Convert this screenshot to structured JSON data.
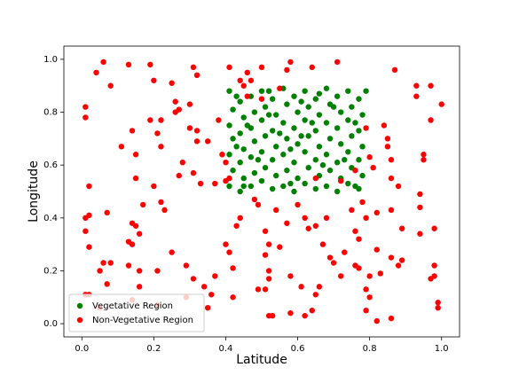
{
  "chart_data": {
    "type": "scatter",
    "x_label": "Latitude",
    "y_label": "Longitude",
    "xlim": [
      -0.05,
      1.05
    ],
    "ylim": [
      -0.05,
      1.05
    ],
    "xticks": [
      {
        "value": 0,
        "label": "0.0"
      },
      0.2,
      0.4,
      0.6,
      0.8,
      {
        "value": 1,
        "label": "1.0"
      }
    ],
    "yticks": [
      {
        "value": 0,
        "label": "0.0"
      },
      0.2,
      0.4,
      0.6,
      0.8,
      {
        "value": 1,
        "label": "1.0"
      }
    ],
    "legend": "lower left",
    "series": [
      {
        "name": "Vegetative Region",
        "color": "#008000",
        "x": [
          0.41,
          0.42,
          0.41,
          0.42,
          0.41,
          0.42,
          0.41,
          0.44,
          0.45,
          0.44,
          0.45,
          0.44,
          0.45,
          0.44,
          0.47,
          0.48,
          0.47,
          0.48,
          0.47,
          0.48,
          0.47,
          0.5,
          0.51,
          0.5,
          0.51,
          0.5,
          0.51,
          0.5,
          0.53,
          0.54,
          0.53,
          0.54,
          0.53,
          0.54,
          0.53,
          0.56,
          0.57,
          0.56,
          0.57,
          0.56,
          0.57,
          0.56,
          0.59,
          0.6,
          0.59,
          0.6,
          0.59,
          0.6,
          0.59,
          0.62,
          0.63,
          0.62,
          0.63,
          0.62,
          0.63,
          0.62,
          0.65,
          0.66,
          0.65,
          0.66,
          0.65,
          0.66,
          0.65,
          0.68,
          0.69,
          0.68,
          0.69,
          0.68,
          0.69,
          0.68,
          0.71,
          0.72,
          0.71,
          0.72,
          0.71,
          0.72,
          0.71,
          0.74,
          0.75,
          0.74,
          0.75,
          0.74,
          0.75,
          0.74,
          0.77,
          0.78,
          0.77,
          0.78,
          0.77,
          0.78,
          0.77,
          0.43,
          0.46,
          0.49,
          0.52,
          0.55,
          0.58,
          0.61,
          0.64,
          0.67,
          0.7,
          0.73,
          0.76,
          0.79,
          0.45,
          0.58,
          0.66,
          0.76,
          0.43,
          0.52,
          0.61
        ],
        "values": [
          0.88,
          0.81,
          0.75,
          0.7,
          0.64,
          0.58,
          0.52,
          0.84,
          0.78,
          0.72,
          0.66,
          0.61,
          0.55,
          0.5,
          0.86,
          0.8,
          0.74,
          0.69,
          0.63,
          0.57,
          0.52,
          0.88,
          0.82,
          0.77,
          0.71,
          0.65,
          0.59,
          0.54,
          0.85,
          0.79,
          0.73,
          0.67,
          0.62,
          0.56,
          0.51,
          0.89,
          0.83,
          0.76,
          0.7,
          0.64,
          0.58,
          0.52,
          0.86,
          0.8,
          0.74,
          0.68,
          0.61,
          0.55,
          0.5,
          0.88,
          0.82,
          0.77,
          0.71,
          0.65,
          0.59,
          0.53,
          0.85,
          0.79,
          0.73,
          0.67,
          0.62,
          0.56,
          0.51,
          0.89,
          0.83,
          0.76,
          0.7,
          0.64,
          0.58,
          0.52,
          0.86,
          0.8,
          0.74,
          0.68,
          0.61,
          0.55,
          0.5,
          0.88,
          0.82,
          0.77,
          0.71,
          0.65,
          0.59,
          0.53,
          0.85,
          0.79,
          0.73,
          0.67,
          0.62,
          0.56,
          0.51,
          0.86,
          0.75,
          0.62,
          0.88,
          0.72,
          0.66,
          0.84,
          0.76,
          0.6,
          0.82,
          0.62,
          0.76,
          0.88,
          0.52,
          0.53,
          0.87,
          0.52,
          0.67,
          0.79,
          0.71
        ]
      },
      {
        "name": "Non-Vegetative Region",
        "color": "#ff0000",
        "x": [
          0.01,
          0.01,
          0.04,
          0.06,
          0.08,
          0.02,
          0.02,
          0.01,
          0.01,
          0.02,
          0.02,
          0.01,
          0.05,
          0.06,
          0.08,
          0.07,
          0.07,
          0.05,
          0.11,
          0.13,
          0.14,
          0.15,
          0.15,
          0.14,
          0.15,
          0.13,
          0.14,
          0.16,
          0.17,
          0.16,
          0.13,
          0.14,
          0.16,
          0.19,
          0.2,
          0.19,
          0.22,
          0.21,
          0.22,
          0.2,
          0.22,
          0.23,
          0.21,
          0.21,
          0.25,
          0.26,
          0.26,
          0.27,
          0.28,
          0.27,
          0.25,
          0.29,
          0.29,
          0.3,
          0.31,
          0.32,
          0.3,
          0.32,
          0.32,
          0.31,
          0.33,
          0.31,
          0.34,
          0.35,
          0.36,
          0.35,
          0.37,
          0.38,
          0.39,
          0.37,
          0.4,
          0.41,
          0.41,
          0.42,
          0.42,
          0.43,
          0.44,
          0.44,
          0.45,
          0.46,
          0.47,
          0.48,
          0.49,
          0.49,
          0.5,
          0.51,
          0.51,
          0.52,
          0.52,
          0.52,
          0.51,
          0.52,
          0.53,
          0.54,
          0.55,
          0.57,
          0.58,
          0.57,
          0.58,
          0.58,
          0.6,
          0.61,
          0.62,
          0.62,
          0.63,
          0.64,
          0.64,
          0.65,
          0.65,
          0.66,
          0.67,
          0.68,
          0.69,
          0.7,
          0.71,
          0.72,
          0.73,
          0.75,
          0.76,
          0.77,
          0.76,
          0.77,
          0.78,
          0.79,
          0.79,
          0.79,
          0.8,
          0.8,
          0.81,
          0.82,
          0.82,
          0.82,
          0.83,
          0.84,
          0.85,
          0.86,
          0.86,
          0.86,
          0.86,
          0.86,
          0.87,
          0.88,
          0.88,
          0.89,
          0.89,
          0.93,
          0.93,
          0.94,
          0.94,
          0.94,
          0.95,
          0.95,
          0.97,
          0.97,
          0.97,
          0.98,
          0.98,
          0.98,
          0.99,
          0.99,
          1.0,
          0.85,
          0.46,
          0.5,
          0.55,
          0.65,
          0.72,
          0.76,
          0.79,
          0.8,
          0.4,
          0.41,
          0.4
        ],
        "values": [
          0.78,
          0.82,
          0.95,
          0.99,
          0.9,
          0.52,
          0.41,
          0.4,
          0.35,
          0.29,
          0.11,
          0.11,
          0.2,
          0.23,
          0.23,
          0.42,
          0.15,
          0.06,
          0.67,
          0.98,
          0.73,
          0.64,
          0.55,
          0.38,
          0.37,
          0.31,
          0.3,
          0.34,
          0.45,
          0.2,
          0.22,
          0.09,
          0.14,
          0.98,
          0.92,
          0.77,
          0.77,
          0.72,
          0.67,
          0.52,
          0.46,
          0.43,
          0.2,
          0.07,
          0.91,
          0.84,
          0.8,
          0.81,
          0.61,
          0.56,
          0.27,
          0.22,
          0.1,
          0.74,
          0.97,
          0.94,
          0.83,
          0.73,
          0.69,
          0.57,
          0.53,
          0.17,
          0.14,
          0.06,
          0.11,
          0.69,
          0.53,
          0.77,
          0.64,
          0.18,
          0.3,
          0.27,
          0.97,
          0.21,
          0.1,
          0.37,
          0.4,
          0.92,
          0.9,
          0.95,
          0.92,
          0.47,
          0.45,
          0.13,
          0.97,
          0.35,
          0.26,
          0.3,
          0.2,
          0.17,
          0.13,
          0.03,
          0.03,
          0.43,
          0.29,
          0.38,
          0.99,
          0.96,
          0.18,
          0.04,
          0.45,
          0.14,
          0.4,
          0.03,
          0.36,
          0.97,
          0.05,
          0.37,
          0.11,
          0.14,
          0.3,
          0.4,
          0.25,
          0.23,
          0.99,
          0.18,
          0.27,
          0.43,
          0.35,
          0.32,
          0.22,
          0.21,
          0.46,
          0.4,
          0.13,
          0.05,
          0.1,
          0.18,
          0.59,
          0.28,
          0.42,
          0.01,
          0.19,
          0.75,
          0.7,
          0.62,
          0.55,
          0.43,
          0.25,
          0.02,
          0.96,
          0.22,
          0.52,
          0.36,
          0.24,
          0.9,
          0.86,
          0.49,
          0.44,
          0.34,
          0.64,
          0.62,
          0.9,
          0.77,
          0.17,
          0.36,
          0.22,
          0.18,
          0.08,
          0.06,
          0.83,
          0.67,
          0.86,
          0.85,
          0.89,
          0.55,
          0.54,
          0.58,
          0.74,
          0.63,
          0.61,
          0.55,
          0.54
        ]
      }
    ]
  }
}
